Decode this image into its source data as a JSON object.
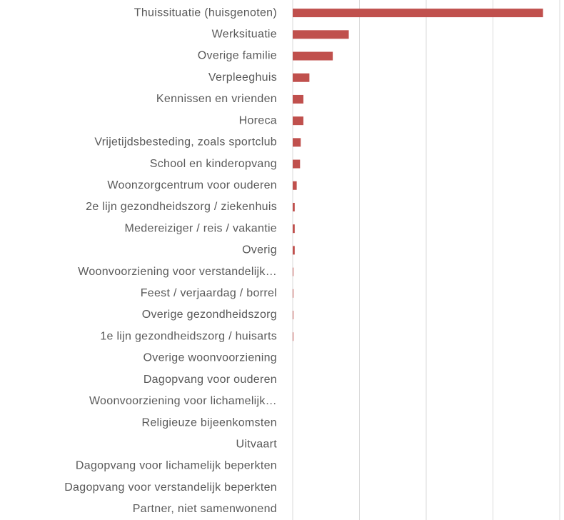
{
  "chart_data": {
    "type": "bar",
    "orientation": "horizontal",
    "categories": [
      "Thuissituatie (huisgenoten)",
      "Werksituatie",
      "Overige familie",
      "Verpleeghuis",
      "Kennissen en vrienden",
      "Horeca",
      "Vrijetijdsbesteding, zoals sportclub",
      "School en kinderopvang",
      "Woonzorgcentrum voor ouderen",
      "2e lijn gezondheidszorg / ziekenhuis",
      "Medereiziger / reis / vakantie",
      "Overig",
      "Woonvoorziening voor verstandelijk…",
      "Feest / verjaardag / borrel",
      "Overige gezondheidszorg",
      "1e lijn gezondheidszorg / huisarts",
      "Overige woonvoorziening",
      "Dagopvang voor ouderen",
      "Woonvoorziening voor lichamelijk…",
      "Religieuze bijeenkomsten",
      "Uitvaart",
      "Dagopvang voor lichamelijk beperkten",
      "Dagopvang voor verstandelijk beperkten",
      "Partner, niet samenwonend"
    ],
    "values": [
      3.75,
      0.84,
      0.6,
      0.25,
      0.16,
      0.16,
      0.12,
      0.11,
      0.06,
      0.03,
      0.03,
      0.03,
      0.01,
      0.01,
      0.01,
      0.01,
      0,
      0,
      0,
      0,
      0,
      0,
      0,
      0
    ],
    "color": "#c0504d",
    "xlim": [
      0,
      4
    ],
    "xticks": [
      0,
      1,
      2,
      3,
      4
    ],
    "grid": true
  }
}
